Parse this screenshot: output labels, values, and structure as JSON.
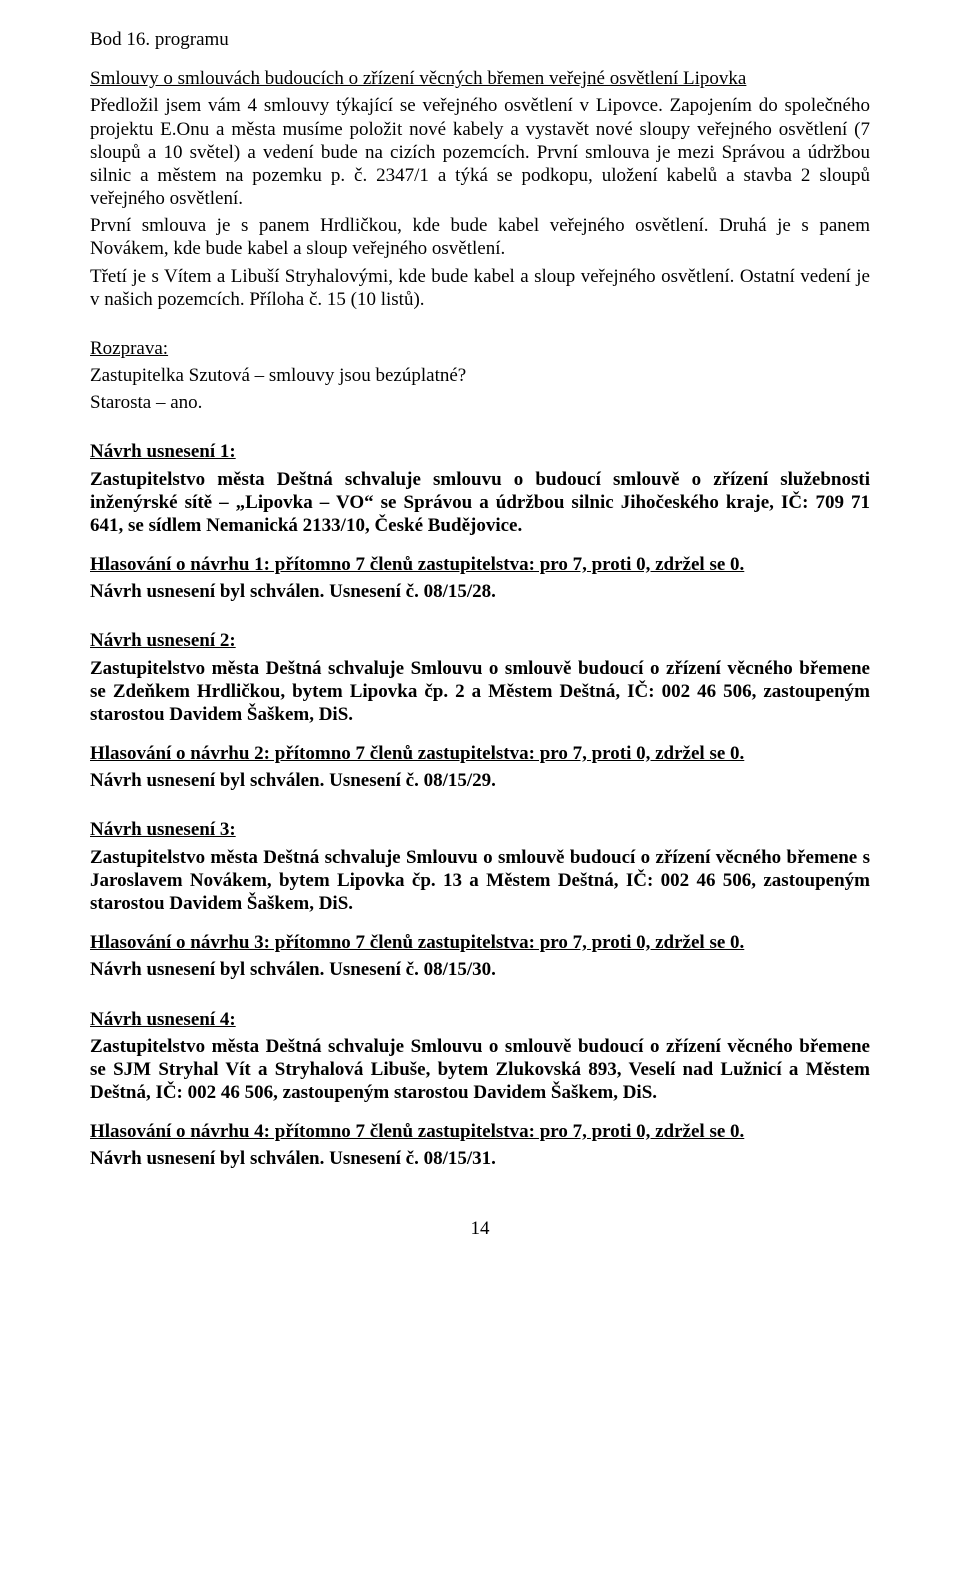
{
  "heading": "Bod 16. programu",
  "title_underline": "Smlouvy o smlouvách budoucích o zřízení věcných břemen veřejné osvětlení Lipovka",
  "intro1": "Předložil jsem vám 4 smlouvy týkající se veřejného osvětlení v Lipovce. Zapojením do společného projektu E.Onu a města musíme položit nové kabely a vystavět nové sloupy veřejného osvětlení (7 sloupů a 10 světel) a vedení bude na cizích pozemcích. První smlouva je mezi Správou a údržbou silnic a městem na pozemku p. č. 2347/1 a týká se podkopu, uložení kabelů a stavba 2 sloupů veřejného osvětlení.",
  "intro2": "První smlouva je s panem Hrdličkou, kde bude kabel veřejného osvětlení. Druhá je s panem Novákem, kde bude kabel a sloup veřejného osvětlení.",
  "intro3": "Třetí je s Vítem a Libuší Stryhalovými, kde bude kabel a sloup veřejného osvětlení. Ostatní vedení je v našich pozemcích. Příloha č. 15 (10 listů).",
  "rozprava_label": "Rozprava:",
  "rozprava_line1": "Zastupitelka Szutová – smlouvy jsou bezúplatné?",
  "rozprava_line2": "Starosta – ano.",
  "n1": {
    "label": "Návrh usnesení 1:",
    "body": "Zastupitelstvo města Deštná schvaluje smlouvu o budoucí smlouvě o zřízení služebnosti inženýrské sítě – „Lipovka – VO“ se Správou a údržbou silnic Jihočeského kraje, IČ: 709 71 641, se sídlem Nemanická 2133/10, České Budějovice.",
    "vote": "Hlasování o návrhu 1: přítomno 7 členů zastupitelstva: pro 7, proti 0, zdržel se 0.",
    "result": "Návrh usnesení byl schválen. Usnesení č. 08/15/28."
  },
  "n2": {
    "label": "Návrh usnesení 2:",
    "body": "Zastupitelstvo města Deštná schvaluje Smlouvu o smlouvě budoucí o zřízení věcného břemene se Zdeňkem Hrdličkou, bytem Lipovka čp. 2 a Městem Deštná, IČ: 002 46 506, zastoupeným starostou Davidem Šaškem, DiS.",
    "vote": "Hlasování o návrhu 2: přítomno 7 členů zastupitelstva: pro 7, proti 0, zdržel se 0.",
    "result": "Návrh usnesení byl schválen. Usnesení č. 08/15/29."
  },
  "n3": {
    "label": "Návrh usnesení 3:",
    "body": "Zastupitelstvo města Deštná schvaluje Smlouvu o smlouvě budoucí o zřízení věcného břemene s Jaroslavem Novákem, bytem Lipovka čp. 13 a Městem Deštná, IČ: 002 46 506, zastoupeným starostou Davidem Šaškem, DiS.",
    "vote": "Hlasování o návrhu 3: přítomno 7 členů zastupitelstva: pro 7, proti 0, zdržel se 0.",
    "result": "Návrh usnesení byl schválen. Usnesení č. 08/15/30."
  },
  "n4": {
    "label": "Návrh usnesení 4:",
    "body": "Zastupitelstvo města Deštná schvaluje Smlouvu o smlouvě budoucí o zřízení věcného břemene se SJM Stryhal Vít a Stryhalová Libuše, bytem Zlukovská 893, Veselí nad Lužnicí a Městem Deštná, IČ: 002 46 506, zastoupeným starostou Davidem Šaškem, DiS.",
    "vote": "Hlasování o návrhu 4: přítomno 7 členů zastupitelstva: pro 7, proti 0, zdržel se 0.",
    "result": "Návrh usnesení byl schválen. Usnesení č. 08/15/31."
  },
  "page_number": "14"
}
